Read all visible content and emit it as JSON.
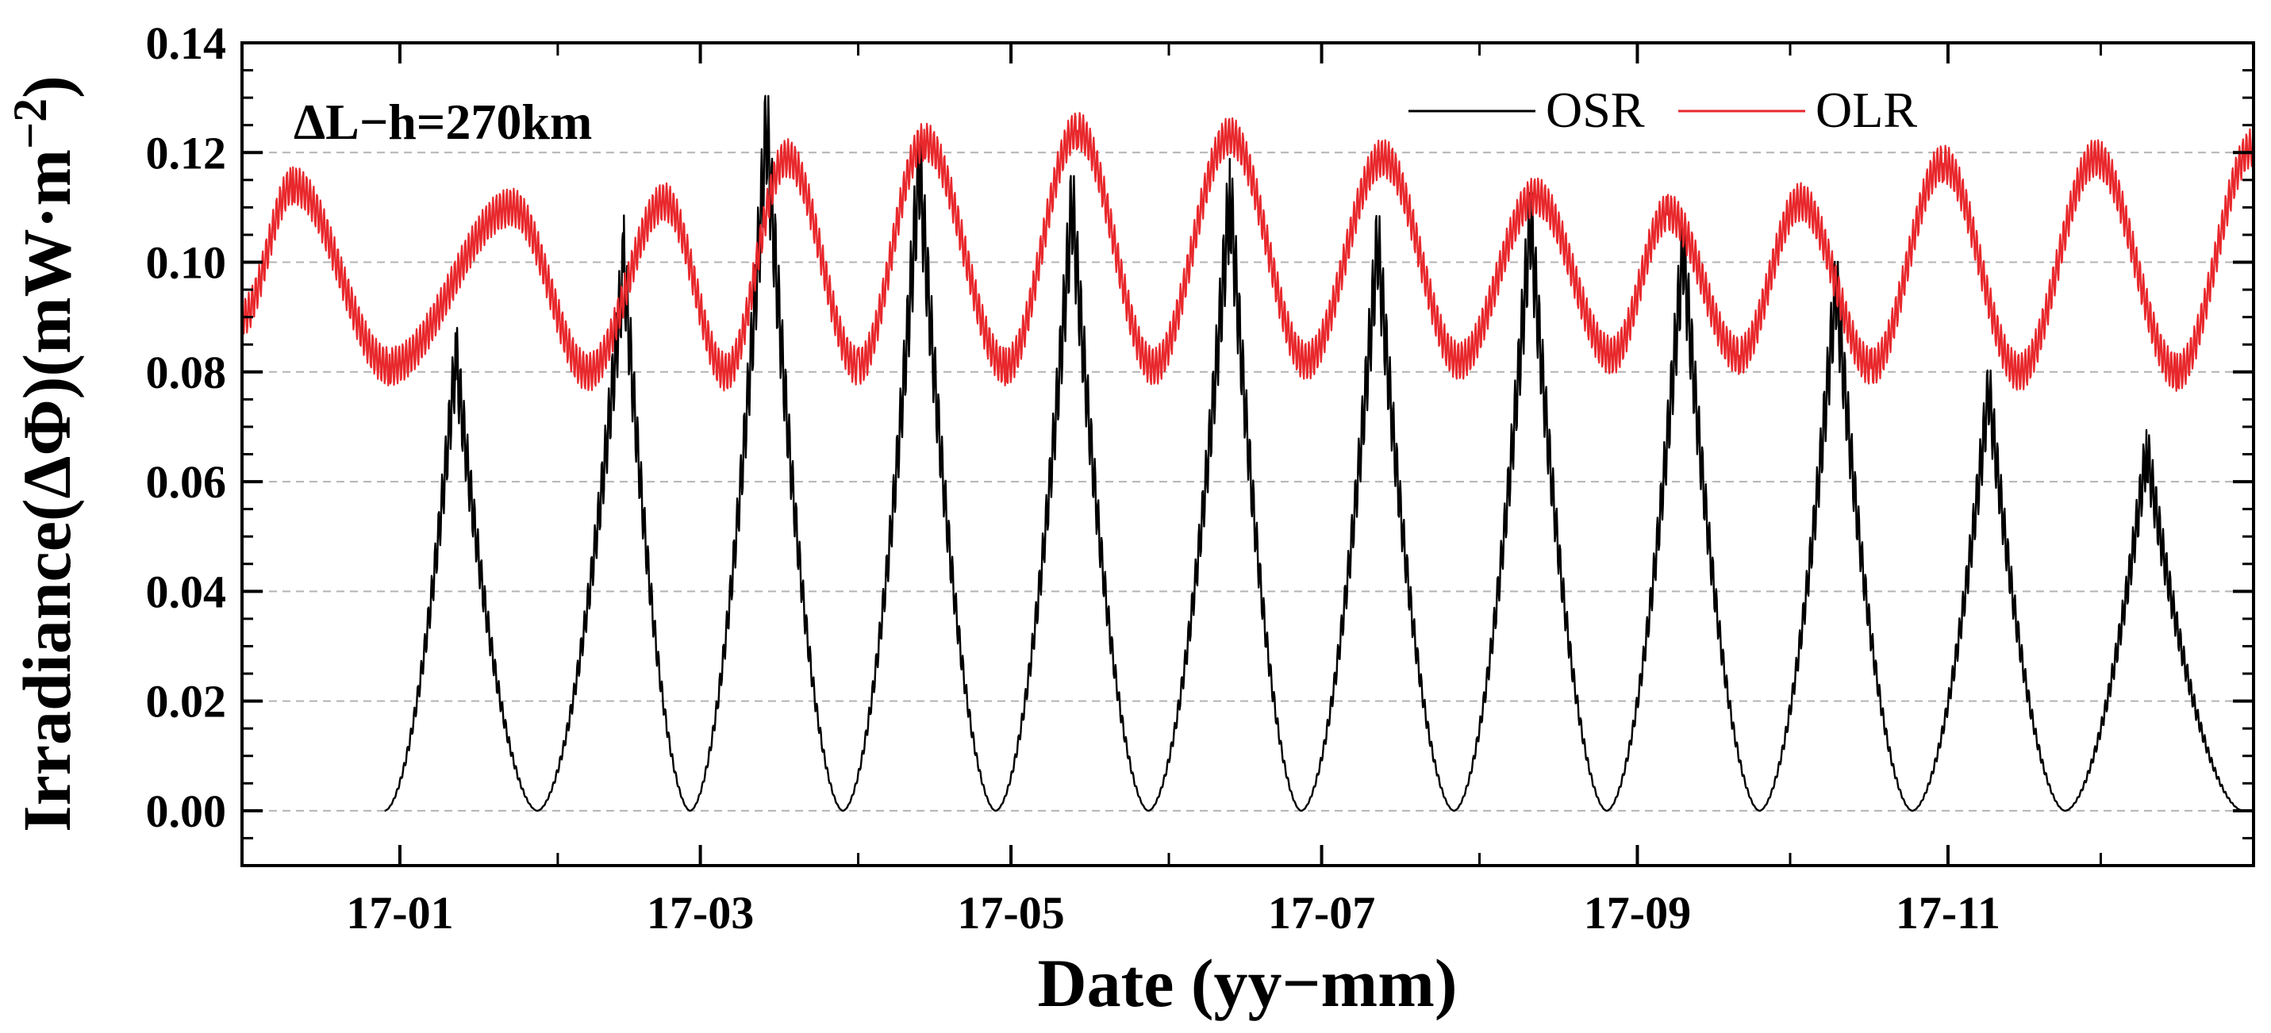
{
  "chart_data": {
    "type": "line",
    "xlabel": "Date (yy−mm)",
    "ylabel_parts": {
      "main": "Irradiance(ΔΦ)(mW·m",
      "sup": "−2",
      "close": ")"
    },
    "annotation": "ΔL−h=270km",
    "xlim": [
      "2016-12-01",
      "2017-12-31"
    ],
    "ylim": [
      -0.01,
      0.14
    ],
    "grid": {
      "y": true,
      "x": false,
      "style": "dashed"
    },
    "legend": {
      "placement": "top-right",
      "orientation": "horizontal"
    },
    "x_ticks": [
      "17-01",
      "17-03",
      "17-05",
      "17-07",
      "17-09",
      "17-11"
    ],
    "x_tick_dates": [
      "2017-01-01",
      "2017-03-01",
      "2017-05-01",
      "2017-07-01",
      "2017-09-01",
      "2017-11-01"
    ],
    "y_ticks": [
      "0.00",
      "0.02",
      "0.04",
      "0.06",
      "0.08",
      "0.10",
      "0.12",
      "0.14"
    ],
    "y_tick_values": [
      0.0,
      0.02,
      0.04,
      0.06,
      0.08,
      0.1,
      0.12,
      0.14
    ],
    "series": [
      {
        "name": "OSR",
        "color": "#000000",
        "peaks": [
          {
            "date": "2017-01-12",
            "value": 0.083
          },
          {
            "date": "2017-02-14",
            "value": 0.1
          },
          {
            "date": "2017-03-14",
            "value": 0.125
          },
          {
            "date": "2017-04-13",
            "value": 0.118
          },
          {
            "date": "2017-05-13",
            "value": 0.111
          },
          {
            "date": "2017-06-13",
            "value": 0.113
          },
          {
            "date": "2017-07-12",
            "value": 0.104
          },
          {
            "date": "2017-08-11",
            "value": 0.108
          },
          {
            "date": "2017-09-10",
            "value": 0.103
          },
          {
            "date": "2017-10-10",
            "value": 0.096
          },
          {
            "date": "2017-11-09",
            "value": 0.077
          },
          {
            "date": "2017-12-10",
            "value": 0.066
          }
        ],
        "minima": [
          {
            "date": "2016-12-29",
            "value": 0.0
          },
          {
            "date": "2017-01-28",
            "value": 0.0
          },
          {
            "date": "2017-02-27",
            "value": 0.0
          },
          {
            "date": "2017-03-29",
            "value": 0.0
          },
          {
            "date": "2017-04-28",
            "value": 0.0
          },
          {
            "date": "2017-05-28",
            "value": 0.0
          },
          {
            "date": "2017-06-27",
            "value": 0.0
          },
          {
            "date": "2017-07-27",
            "value": 0.0
          },
          {
            "date": "2017-08-26",
            "value": 0.0
          },
          {
            "date": "2017-09-25",
            "value": 0.0
          },
          {
            "date": "2017-10-25",
            "value": 0.0
          },
          {
            "date": "2017-11-24",
            "value": 0.0
          },
          {
            "date": "2017-12-29",
            "value": 0.0
          }
        ]
      },
      {
        "name": "OLR",
        "color": "#e8282c",
        "peaks": [
          {
            "date": "2016-12-11",
            "value": 0.114
          },
          {
            "date": "2017-01-23",
            "value": 0.11
          },
          {
            "date": "2017-02-22",
            "value": 0.111
          },
          {
            "date": "2017-03-18",
            "value": 0.119
          },
          {
            "date": "2017-04-14",
            "value": 0.122
          },
          {
            "date": "2017-05-14",
            "value": 0.124
          },
          {
            "date": "2017-06-13",
            "value": 0.123
          },
          {
            "date": "2017-07-13",
            "value": 0.119
          },
          {
            "date": "2017-08-12",
            "value": 0.112
          },
          {
            "date": "2017-09-07",
            "value": 0.109
          },
          {
            "date": "2017-10-03",
            "value": 0.111
          },
          {
            "date": "2017-10-31",
            "value": 0.118
          },
          {
            "date": "2017-11-30",
            "value": 0.119
          },
          {
            "date": "2017-12-31",
            "value": 0.121
          }
        ],
        "minima": [
          {
            "date": "2016-12-01",
            "value": 0.09
          },
          {
            "date": "2016-12-30",
            "value": 0.081
          },
          {
            "date": "2017-02-07",
            "value": 0.08
          },
          {
            "date": "2017-03-06",
            "value": 0.08
          },
          {
            "date": "2017-04-01",
            "value": 0.081
          },
          {
            "date": "2017-04-30",
            "value": 0.081
          },
          {
            "date": "2017-05-29",
            "value": 0.081
          },
          {
            "date": "2017-06-28",
            "value": 0.082
          },
          {
            "date": "2017-07-28",
            "value": 0.082
          },
          {
            "date": "2017-08-27",
            "value": 0.083
          },
          {
            "date": "2017-09-21",
            "value": 0.083
          },
          {
            "date": "2017-10-17",
            "value": 0.081
          },
          {
            "date": "2017-11-15",
            "value": 0.08
          },
          {
            "date": "2017-12-16",
            "value": 0.08
          }
        ]
      }
    ]
  }
}
